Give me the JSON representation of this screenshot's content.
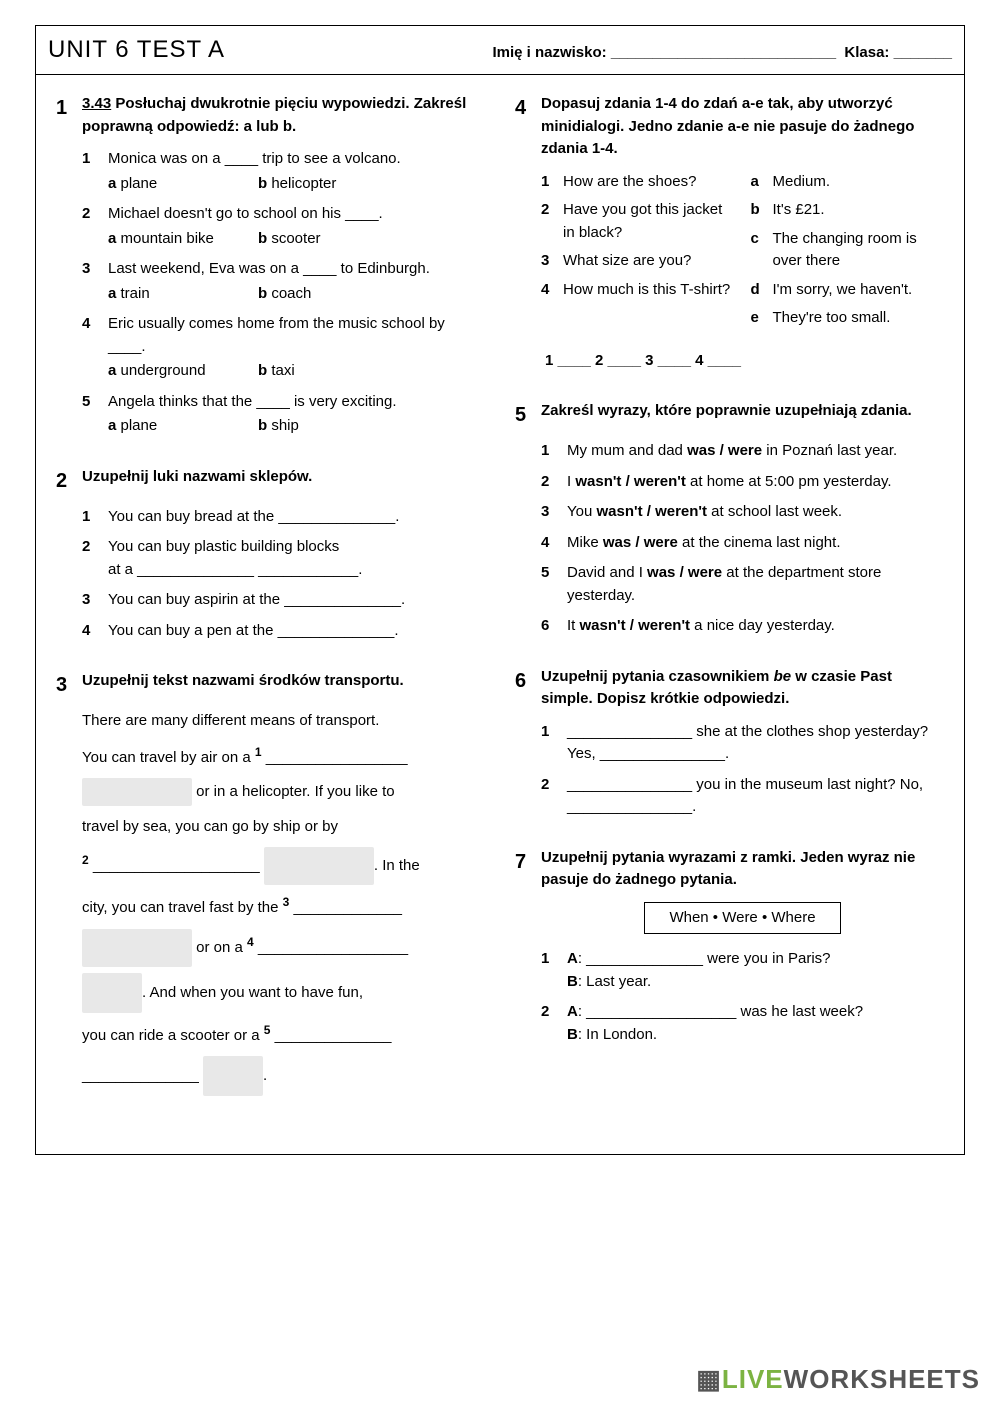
{
  "header": {
    "title": "UNIT 6 TEST A",
    "name_label": "Imię i nazwisko: ___________________________",
    "class_label": "Klasa: _______"
  },
  "ex1": {
    "num": "1",
    "instr_link": "3.43",
    "instr_rest": " Posłuchaj dwukrotnie pięciu wypowiedzi. Zakreśl poprawną odpowiedź: a lub b.",
    "items": [
      {
        "n": "1",
        "text": "Monica was on a ____ trip to see a volcano.",
        "a": "plane",
        "b": "helicopter"
      },
      {
        "n": "2",
        "text": "Michael doesn't go to school on his ____.",
        "a": "mountain bike",
        "b": "scooter"
      },
      {
        "n": "3",
        "text": "Last weekend, Eva was on a ____ to Edinburgh.",
        "a": "train",
        "b": "coach"
      },
      {
        "n": "4",
        "text": "Eric usually comes home from the music school by ____.",
        "a": "underground",
        "b": "taxi"
      },
      {
        "n": "5",
        "text": "Angela thinks that the ____ is very exciting.",
        "a": "plane",
        "b": "ship"
      }
    ]
  },
  "ex2": {
    "num": "2",
    "instr": "Uzupełnij luki nazwami sklepów.",
    "items": [
      {
        "n": "1",
        "text": "You can buy bread at the ______________."
      },
      {
        "n": "2",
        "text": "You can buy plastic building blocks",
        "text2": "at a ______________ ____________."
      },
      {
        "n": "3",
        "text": "You can buy aspirin at the ______________."
      },
      {
        "n": "4",
        "text": "You can buy a pen at the ______________."
      }
    ]
  },
  "ex3": {
    "num": "3",
    "instr": "Uzupełnij tekst nazwami środków transportu.",
    "intro1": "There are many different means of transport.",
    "intro2_a": "You can travel by air on a ",
    "sup1": "1",
    "blank1": " _________________",
    "line2": " or in a helicopter. If you like to",
    "line3": "travel by sea, you can go by ship or by",
    "sup2": "2",
    "blank2": " ____________________ ",
    "line4": ". In the",
    "line5a": "city, you can travel fast by the ",
    "sup3": "3",
    "blank5": " _____________",
    "line6": " or on a ",
    "sup4": "4",
    "blank6": " __________________",
    "line7": ". And when you want to have fun,",
    "line8a": "you can ride a scooter or a ",
    "sup5": "5",
    "blank8": " ______________",
    "blank9": "______________ ",
    "period": "."
  },
  "ex4": {
    "num": "4",
    "instr": "Dopasuj zdania 1-4 do zdań a-e tak, aby utworzyć minidialogi. Jedno zdanie a-e nie pasuje do żadnego zdania 1-4.",
    "left": [
      {
        "n": "1",
        "text": "How are the shoes?"
      },
      {
        "n": "2",
        "text": "Have you got this jacket in black?"
      },
      {
        "n": "3",
        "text": "What size are you?"
      },
      {
        "n": "4",
        "text": "How much is this T-shirt?"
      }
    ],
    "right": [
      {
        "n": "a",
        "text": "Medium."
      },
      {
        "n": "b",
        "text": "It's £21."
      },
      {
        "n": "c",
        "text": "The changing room is over there"
      },
      {
        "n": "d",
        "text": "I'm sorry, we haven't."
      },
      {
        "n": "e",
        "text": "They're too small."
      }
    ],
    "answers": "1 ____   2 ____   3 ____   4 ____"
  },
  "ex5": {
    "num": "5",
    "instr": "Zakreśl wyrazy, które poprawnie uzupełniają zdania.",
    "items": [
      {
        "n": "1",
        "pre": "My mum and dad ",
        "bold": "was / were",
        "post": " in Poznań last year."
      },
      {
        "n": "2",
        "pre": "I ",
        "bold": "wasn't / weren't",
        "post": " at home at 5:00 pm yesterday."
      },
      {
        "n": "3",
        "pre": "You ",
        "bold": "wasn't / weren't",
        "post": " at school last week."
      },
      {
        "n": "4",
        "pre": "Mike ",
        "bold": "was / were",
        "post": " at the cinema last night."
      },
      {
        "n": "5",
        "pre": "David and I ",
        "bold": "was / were",
        "post": " at the department store yesterday."
      },
      {
        "n": "6",
        "pre": "It ",
        "bold": "wasn't / weren't",
        "post": " a nice day yesterday."
      }
    ]
  },
  "ex6": {
    "num": "6",
    "instr_a": "Uzupełnij pytania czasownikiem ",
    "instr_b": "be",
    "instr_c": " w czasie Past simple. Dopisz krótkie odpowiedzi.",
    "items": [
      {
        "n": "1",
        "text": "_______________ she at the clothes shop yesterday? Yes, _______________."
      },
      {
        "n": "2",
        "text": "_______________ you in the museum last night? No, _______________."
      }
    ]
  },
  "ex7": {
    "num": "7",
    "instr": "Uzupełnij pytania wyrazami z ramki. Jeden wyraz nie pasuje do żadnego pytania.",
    "box": "When • Were • Where",
    "items": [
      {
        "n": "1",
        "a": "______________ were you in Paris?",
        "b": "Last year."
      },
      {
        "n": "2",
        "a": "__________________ was he last week?",
        "b": "In London."
      }
    ]
  },
  "watermark": {
    "logo": "▦",
    "live": "LIVE",
    "rest": "WORKSHEETS"
  }
}
